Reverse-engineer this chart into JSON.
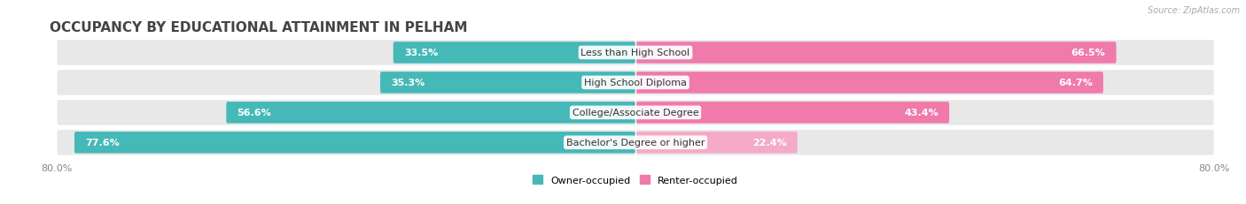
{
  "title": "OCCUPANCY BY EDUCATIONAL ATTAINMENT IN PELHAM",
  "source": "Source: ZipAtlas.com",
  "categories": [
    "Less than High School",
    "High School Diploma",
    "College/Associate Degree",
    "Bachelor's Degree or higher"
  ],
  "owner_values": [
    33.5,
    35.3,
    56.6,
    77.6
  ],
  "renter_values": [
    66.5,
    64.7,
    43.4,
    22.4
  ],
  "owner_color": "#45b8b8",
  "renter_colors": [
    "#f07aaa",
    "#f07aaa",
    "#f07aaa",
    "#f5aac8"
  ],
  "bg_bar_color": "#e8e8e8",
  "figure_bg": "#ffffff",
  "chart_bg": "#ffffff",
  "title_color": "#444444",
  "label_color_inside": "#ffffff",
  "label_color_outside": "#666666",
  "axis_min": -80.0,
  "axis_max": 80.0,
  "title_fontsize": 11,
  "label_fontsize": 8,
  "cat_fontsize": 8,
  "tick_fontsize": 8,
  "source_fontsize": 7,
  "bar_height": 0.72,
  "bg_bar_extra": 0.12,
  "legend_owner": "Owner-occupied",
  "legend_renter": "Renter-occupied",
  "owner_inside_threshold": 15,
  "renter_inside_threshold": 15
}
